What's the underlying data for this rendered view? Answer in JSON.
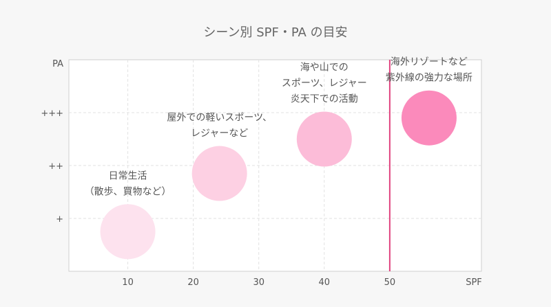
{
  "chart_data": {
    "type": "scatter",
    "title": "シーン別 SPF・PA の目安",
    "xlabel": "SPF",
    "ylabel": "PA",
    "xlim": [
      1,
      64
    ],
    "ylim": [
      0,
      4
    ],
    "x_ticks": [
      10,
      20,
      30,
      40,
      50
    ],
    "y_ticks": [
      {
        "value": 1,
        "label": "+"
      },
      {
        "value": 2,
        "label": "++"
      },
      {
        "value": 3,
        "label": "+++"
      }
    ],
    "grid": true,
    "reference_line": {
      "axis": "x",
      "value": 50,
      "color": "#e0437f"
    },
    "series": [
      {
        "points": [
          {
            "x": 10,
            "y": 0.75,
            "label": [
              "日常生活",
              "（散歩、買物など）"
            ],
            "color": "#fde2ee"
          },
          {
            "x": 24,
            "y": 1.85,
            "label": [
              "屋外での軽いスポーツ、",
              "レジャーなど"
            ],
            "color": "#fdd0e3"
          },
          {
            "x": 40,
            "y": 2.5,
            "label": [
              "海や山での",
              "スポーツ、レジャー",
              "炎天下での活動"
            ],
            "color": "#fcbcd8"
          },
          {
            "x": 56,
            "y": 2.9,
            "label": [
              "海外リゾートなど",
              "紫外線の強力な場所"
            ],
            "color": "#fb8abb"
          }
        ]
      }
    ]
  }
}
